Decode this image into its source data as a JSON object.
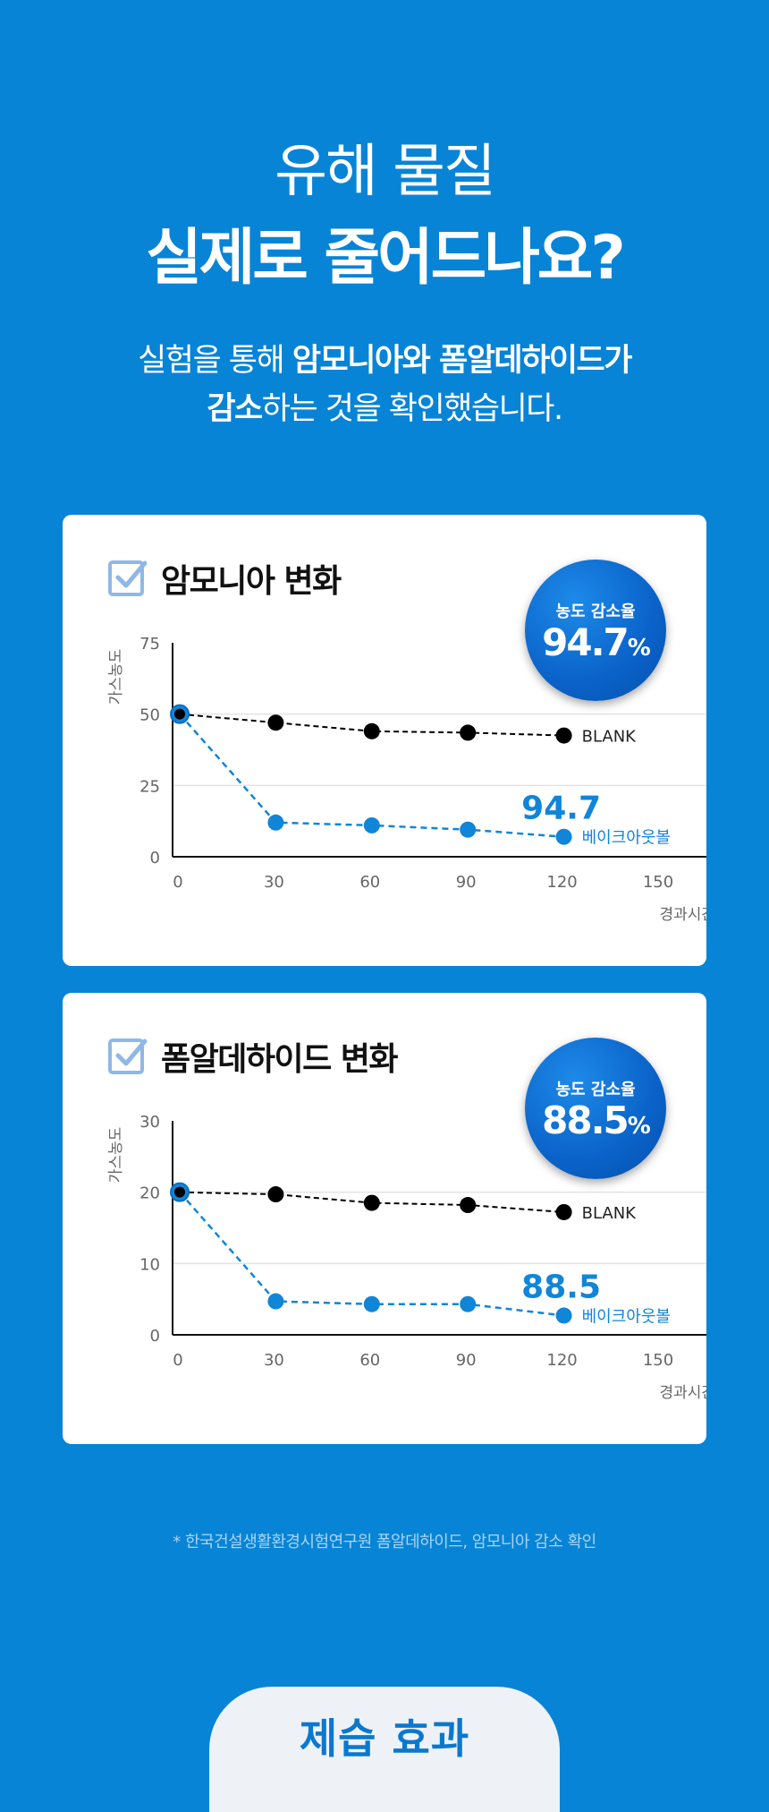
{
  "hero": {
    "line1": "유해 물질",
    "line2": "실제로 줄어드나요?",
    "sub1_a": "실험을 통해 ",
    "sub1_b": "암모니아와 폼알데하이드가",
    "sub2_a": "감소",
    "sub2_b": "하는 것을 확인했습니다."
  },
  "cards": [
    {
      "title": "암모니아 변화",
      "icon": "checkbox-icon",
      "badge_label": "농도 감소율",
      "badge_value": "94.7",
      "badge_unit": "%"
    },
    {
      "title": "폼알데하이드 변화",
      "icon": "checkbox-icon",
      "badge_label": "농도 감소율",
      "badge_value": "88.5",
      "badge_unit": "%"
    }
  ],
  "chart_data": [
    {
      "type": "line",
      "ylabel": "가스농도",
      "xlabel": "경과시간",
      "ylim": [
        0,
        75
      ],
      "xlim": [
        0,
        150
      ],
      "yticks": [
        0,
        25,
        50,
        75
      ],
      "xticks": [
        0,
        30,
        60,
        90,
        120,
        150
      ],
      "grid": true,
      "annotation": "94.7",
      "series": [
        {
          "name": "BLANK",
          "color": "#000000",
          "x": [
            0,
            30,
            60,
            90,
            120
          ],
          "y": [
            50,
            47,
            44,
            43.5,
            42.5
          ]
        },
        {
          "name": "베이크아웃볼",
          "color": "#1185d8",
          "x": [
            0,
            30,
            60,
            90,
            120
          ],
          "y": [
            50,
            12,
            11,
            9.5,
            7
          ]
        }
      ]
    },
    {
      "type": "line",
      "ylabel": "가스농도",
      "xlabel": "경과시간",
      "ylim": [
        0,
        30
      ],
      "xlim": [
        0,
        150
      ],
      "yticks": [
        0,
        10,
        20,
        30
      ],
      "xticks": [
        0,
        30,
        60,
        90,
        120,
        150
      ],
      "grid": true,
      "annotation": "88.5",
      "series": [
        {
          "name": "BLANK",
          "color": "#000000",
          "x": [
            0,
            30,
            60,
            90,
            120
          ],
          "y": [
            20,
            19.7,
            18.5,
            18.2,
            17.2
          ]
        },
        {
          "name": "베이크아웃볼",
          "color": "#1185d8",
          "x": [
            0,
            30,
            60,
            90,
            120
          ],
          "y": [
            20,
            4.7,
            4.3,
            4.3,
            2.7
          ]
        }
      ]
    }
  ],
  "footnote": "* 한국건설생활환경시험연구원 폼알데하이드, 암모니아 감소 확인",
  "bottom_tab": {
    "label": "제습 효과"
  }
}
